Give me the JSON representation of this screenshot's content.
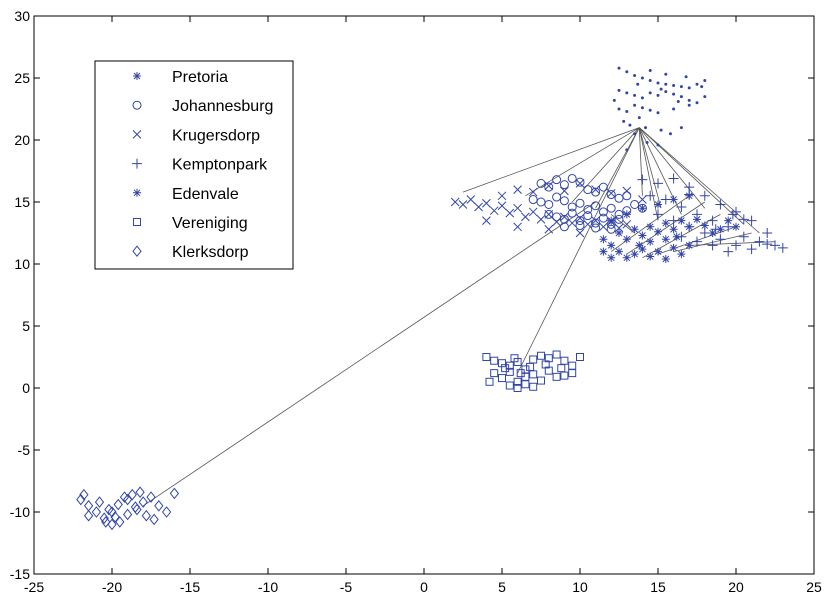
{
  "chart_data": {
    "type": "scatter",
    "title": "",
    "xlabel": "",
    "ylabel": "",
    "xlim": [
      -25,
      25
    ],
    "ylim": [
      -15,
      30
    ],
    "x_ticks": [
      "-25",
      "-20",
      "-15",
      "-10",
      "-5",
      "0",
      "5",
      "10",
      "15",
      "20",
      "25"
    ],
    "y_ticks": [
      "-15",
      "-10",
      "-5",
      "0",
      "5",
      "10",
      "15",
      "20",
      "25",
      "30"
    ],
    "grid": false,
    "legend_position": "top-left",
    "colors": {
      "marker": "#3346a6",
      "line": "#555555",
      "axis": "#000000"
    },
    "series": [
      {
        "name": "Pretoria",
        "marker": "dot",
        "points": [
          [
            12.5,
            25.8
          ],
          [
            13,
            25.5
          ],
          [
            13.5,
            25.2
          ],
          [
            14,
            25
          ],
          [
            14.5,
            24.8
          ],
          [
            15,
            24.6
          ],
          [
            15.5,
            24.5
          ],
          [
            16,
            24.4
          ],
          [
            16.5,
            24.3
          ],
          [
            17,
            24.2
          ],
          [
            17.5,
            24.5
          ],
          [
            18,
            24.8
          ],
          [
            12.5,
            24
          ],
          [
            13,
            23.8
          ],
          [
            13.5,
            23.6
          ],
          [
            14,
            23.4
          ],
          [
            14.5,
            23.8
          ],
          [
            15,
            23.6
          ],
          [
            15.5,
            23.9
          ],
          [
            16,
            23.7
          ],
          [
            16.5,
            23.5
          ],
          [
            17,
            23.2
          ],
          [
            17.5,
            23
          ],
          [
            18,
            23.5
          ],
          [
            12.5,
            22.5
          ],
          [
            13,
            22.3
          ],
          [
            13.5,
            22.8
          ],
          [
            14,
            22.6
          ],
          [
            14.5,
            22.4
          ],
          [
            15,
            22.2
          ],
          [
            16,
            22.5
          ],
          [
            17,
            22.8
          ],
          [
            12.8,
            21.5
          ],
          [
            13.2,
            21.2
          ],
          [
            13.8,
            21.8
          ],
          [
            14.2,
            21
          ],
          [
            15.2,
            20.8
          ],
          [
            15.8,
            20.5
          ],
          [
            16.5,
            21
          ],
          [
            13.5,
            20.5
          ],
          [
            14.3,
            19.8
          ],
          [
            15,
            19.6
          ],
          [
            13,
            19.2
          ],
          [
            14.5,
            25.6
          ],
          [
            15.5,
            25.3
          ],
          [
            16.8,
            25.1
          ],
          [
            17.8,
            24.3
          ],
          [
            12.2,
            23.2
          ],
          [
            13.7,
            24.5
          ],
          [
            15.2,
            24.1
          ],
          [
            16.3,
            23.1
          ]
        ]
      },
      {
        "name": "Johannesburg",
        "marker": "circle",
        "points": [
          [
            7.5,
            16.5
          ],
          [
            8,
            16.2
          ],
          [
            8.5,
            16.8
          ],
          [
            9,
            16.4
          ],
          [
            9.5,
            16.9
          ],
          [
            10,
            16.6
          ],
          [
            10.5,
            16
          ],
          [
            11,
            15.8
          ],
          [
            11.5,
            16.2
          ],
          [
            12,
            15.6
          ],
          [
            12.5,
            15.3
          ],
          [
            13,
            15.5
          ],
          [
            7,
            15.2
          ],
          [
            7.5,
            15
          ],
          [
            8,
            14.8
          ],
          [
            8.5,
            15.4
          ],
          [
            9,
            15.1
          ],
          [
            9.5,
            14.6
          ],
          [
            10,
            14.9
          ],
          [
            10.5,
            14.4
          ],
          [
            11,
            14.7
          ],
          [
            11.5,
            14.2
          ],
          [
            12,
            14.5
          ],
          [
            12.5,
            14
          ],
          [
            13,
            14.3
          ],
          [
            13.5,
            14.8
          ],
          [
            14,
            14.5
          ],
          [
            8,
            14
          ],
          [
            8.5,
            13.8
          ],
          [
            9,
            13.6
          ],
          [
            9.5,
            14.1
          ],
          [
            10,
            13.5
          ],
          [
            10.5,
            13.9
          ],
          [
            11,
            13.3
          ],
          [
            11.5,
            13.7
          ],
          [
            12,
            13.2
          ],
          [
            12.5,
            13.6
          ],
          [
            9,
            13
          ],
          [
            10,
            13.1
          ],
          [
            11,
            12.9
          ],
          [
            12,
            12.8
          ]
        ]
      },
      {
        "name": "Krugersdorp",
        "marker": "x",
        "points": [
          [
            2,
            15
          ],
          [
            2.5,
            14.8
          ],
          [
            3,
            15.2
          ],
          [
            3.5,
            14.6
          ],
          [
            4,
            14.9
          ],
          [
            4.5,
            14.3
          ],
          [
            5,
            14.7
          ],
          [
            5.5,
            14.1
          ],
          [
            6,
            14.5
          ],
          [
            6.5,
            13.8
          ],
          [
            7,
            14.2
          ],
          [
            7.5,
            13.6
          ],
          [
            8,
            14
          ],
          [
            8.5,
            13.4
          ],
          [
            9,
            13.8
          ],
          [
            9.5,
            13.3
          ],
          [
            10,
            13.7
          ],
          [
            10.5,
            13.2
          ],
          [
            11,
            13.5
          ],
          [
            11.5,
            13
          ],
          [
            12,
            13.4
          ],
          [
            12.5,
            12.9
          ],
          [
            13,
            13.2
          ],
          [
            5,
            15.5
          ],
          [
            6,
            16
          ],
          [
            7,
            15.8
          ],
          [
            8,
            16.3
          ],
          [
            9,
            15.9
          ],
          [
            10,
            16.5
          ],
          [
            11,
            16
          ],
          [
            12,
            15.7
          ],
          [
            13,
            15.9
          ],
          [
            14,
            15.2
          ],
          [
            4,
            13.5
          ],
          [
            6,
            13
          ],
          [
            8,
            12.8
          ],
          [
            10,
            12.5
          ]
        ]
      },
      {
        "name": "Kemptonpark",
        "marker": "plus",
        "points": [
          [
            14,
            16.8
          ],
          [
            15,
            16.5
          ],
          [
            16,
            16.9
          ],
          [
            17,
            16.2
          ],
          [
            18,
            15.5
          ],
          [
            19,
            14.8
          ],
          [
            20,
            14.2
          ],
          [
            21,
            13.5
          ],
          [
            22,
            12.5
          ],
          [
            23,
            11.3
          ],
          [
            14.5,
            15.5
          ],
          [
            15.5,
            15.2
          ],
          [
            16.5,
            14.6
          ],
          [
            17.5,
            14
          ],
          [
            18.5,
            13.5
          ],
          [
            19.5,
            13
          ],
          [
            20.5,
            12.2
          ],
          [
            21.5,
            11.8
          ],
          [
            22.5,
            11.5
          ],
          [
            15,
            14
          ],
          [
            16,
            13.5
          ],
          [
            17,
            13
          ],
          [
            18,
            12.5
          ],
          [
            19,
            12
          ],
          [
            20,
            11.5
          ],
          [
            21,
            11.2
          ],
          [
            16.5,
            12.2
          ],
          [
            17.5,
            11.8
          ],
          [
            18.5,
            11.5
          ],
          [
            19.5,
            11
          ],
          [
            20.5,
            13.6
          ],
          [
            19.8,
            14
          ],
          [
            17,
            15.6
          ],
          [
            18.7,
            12.8
          ],
          [
            22,
            11.6
          ]
        ]
      },
      {
        "name": "Edenvale",
        "marker": "asterisk",
        "points": [
          [
            11.5,
            12
          ],
          [
            12,
            11.5
          ],
          [
            12.5,
            11
          ],
          [
            13,
            10.5
          ],
          [
            13.5,
            10.8
          ],
          [
            14,
            11.2
          ],
          [
            14.5,
            10.6
          ],
          [
            15,
            11
          ],
          [
            15.5,
            10.4
          ],
          [
            16,
            11.3
          ],
          [
            16.5,
            10.8
          ],
          [
            17,
            11.5
          ],
          [
            11.5,
            11
          ],
          [
            12,
            10.5
          ],
          [
            12.5,
            12.5
          ],
          [
            13,
            12
          ],
          [
            13.5,
            12.8
          ],
          [
            14,
            12.3
          ],
          [
            14.5,
            13
          ],
          [
            15,
            12.6
          ],
          [
            15.5,
            13.3
          ],
          [
            16,
            12.8
          ],
          [
            16.5,
            13.5
          ],
          [
            17,
            13
          ],
          [
            17.5,
            13.6
          ],
          [
            18,
            13.1
          ],
          [
            18.5,
            12.5
          ],
          [
            19,
            12.8
          ],
          [
            19.5,
            13.5
          ],
          [
            20,
            13
          ],
          [
            12,
            13.5
          ],
          [
            13,
            14
          ],
          [
            14,
            14.5
          ],
          [
            15,
            14.8
          ],
          [
            16,
            15.2
          ],
          [
            17,
            15.5
          ],
          [
            14.5,
            11.8
          ],
          [
            15.5,
            12
          ],
          [
            13.8,
            11.5
          ],
          [
            16.2,
            12.2
          ]
        ]
      },
      {
        "name": "Vereniging",
        "marker": "square",
        "points": [
          [
            4,
            2.5
          ],
          [
            4.5,
            2.2
          ],
          [
            5,
            2
          ],
          [
            5.5,
            1.8
          ],
          [
            6,
            2.1
          ],
          [
            6.5,
            1.5
          ],
          [
            7,
            2.3
          ],
          [
            7.5,
            2.6
          ],
          [
            8,
            2.4
          ],
          [
            8.5,
            2.7
          ],
          [
            9,
            2.2
          ],
          [
            9.5,
            1.8
          ],
          [
            10,
            2.5
          ],
          [
            4.5,
            1.2
          ],
          [
            5,
            0.8
          ],
          [
            5.5,
            1.3
          ],
          [
            6,
            0.5
          ],
          [
            6.5,
            0.9
          ],
          [
            7,
            1.1
          ],
          [
            7.5,
            0.6
          ],
          [
            8,
            1.4
          ],
          [
            8.5,
            0.9
          ],
          [
            9,
            1
          ],
          [
            9.5,
            1.2
          ],
          [
            5.5,
            0.2
          ],
          [
            6,
            0
          ],
          [
            6.5,
            0.3
          ],
          [
            7,
            0.1
          ],
          [
            5.2,
            1.6
          ],
          [
            6.8,
            1.7
          ],
          [
            7.8,
            1.9
          ],
          [
            8.8,
            1.6
          ],
          [
            6.2,
            1.2
          ],
          [
            4.2,
            0.5
          ],
          [
            5.8,
            2.4
          ]
        ]
      },
      {
        "name": "Klerksdorp",
        "marker": "diamond",
        "points": [
          [
            -22,
            -9
          ],
          [
            -21.5,
            -9.5
          ],
          [
            -21,
            -10
          ],
          [
            -20.5,
            -10.5
          ],
          [
            -20,
            -11
          ],
          [
            -19.5,
            -10.8
          ],
          [
            -19,
            -10.2
          ],
          [
            -18.5,
            -9.6
          ],
          [
            -18,
            -9.2
          ],
          [
            -17.5,
            -8.8
          ],
          [
            -17,
            -9.5
          ],
          [
            -16.5,
            -10
          ],
          [
            -16,
            -8.5
          ],
          [
            -21.5,
            -10.3
          ],
          [
            -20.8,
            -9.2
          ],
          [
            -20.2,
            -9.8
          ],
          [
            -19.6,
            -9.4
          ],
          [
            -19.2,
            -8.8
          ],
          [
            -18.7,
            -8.6
          ],
          [
            -18.2,
            -8.4
          ],
          [
            -17.8,
            -10.3
          ],
          [
            -17.3,
            -10.6
          ],
          [
            -20,
            -10
          ],
          [
            -19,
            -9
          ],
          [
            -21.8,
            -8.6
          ],
          [
            -20.4,
            -10.8
          ],
          [
            -19.8,
            -10.4
          ],
          [
            -18.4,
            -9.8
          ]
        ]
      }
    ],
    "connection_lines": {
      "color": "#555555",
      "segments": [
        [
          [
            13.8,
            21
          ],
          [
            2.5,
            15.8
          ]
        ],
        [
          [
            13.8,
            21
          ],
          [
            6.5,
            15.5
          ]
        ],
        [
          [
            13.8,
            21
          ],
          [
            9.5,
            15
          ]
        ],
        [
          [
            13.8,
            21
          ],
          [
            11,
            14.5
          ]
        ],
        [
          [
            13.8,
            21
          ],
          [
            6,
            1.2
          ]
        ],
        [
          [
            13.8,
            21
          ],
          [
            14,
            15.5
          ]
        ],
        [
          [
            13.8,
            21
          ],
          [
            15.2,
            14.5
          ]
        ],
        [
          [
            13.8,
            21
          ],
          [
            16.5,
            14
          ]
        ],
        [
          [
            13.8,
            21
          ],
          [
            21.5,
            12.5
          ]
        ],
        [
          [
            13.8,
            21
          ],
          [
            20.5,
            13.2
          ]
        ],
        [
          [
            13.8,
            21
          ],
          [
            18,
            14.5
          ]
        ],
        [
          [
            13.8,
            21
          ],
          [
            15,
            13.5
          ]
        ],
        [
          [
            -18,
            -9.5
          ],
          [
            11,
            15
          ]
        ],
        [
          [
            12,
            14
          ],
          [
            13.5,
            12.5
          ]
        ],
        [
          [
            12,
            11
          ],
          [
            17,
            15.5
          ]
        ],
        [
          [
            13,
            10.8
          ],
          [
            18,
            15
          ]
        ],
        [
          [
            14,
            10.5
          ],
          [
            19,
            14
          ]
        ],
        [
          [
            15,
            10.8
          ],
          [
            20,
            13
          ]
        ],
        [
          [
            16,
            11
          ],
          [
            21,
            12.5
          ]
        ],
        [
          [
            17,
            11.5
          ],
          [
            22.5,
            11.8
          ]
        ]
      ]
    }
  }
}
